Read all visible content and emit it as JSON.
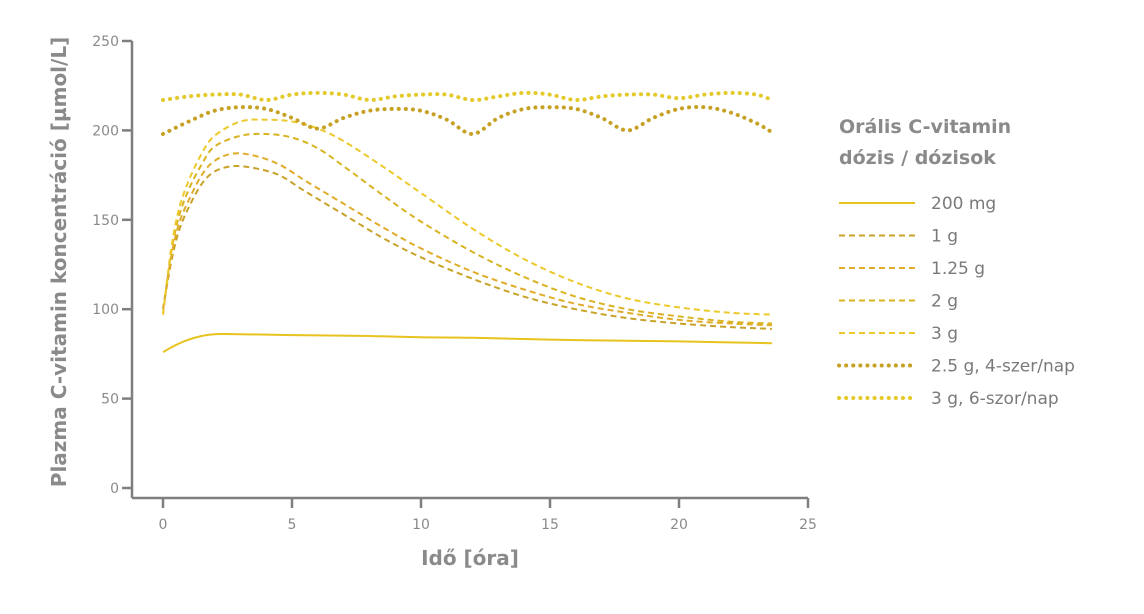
{
  "chart_data": {
    "type": "line",
    "title": "",
    "xlabel": "Idő [óra]",
    "ylabel": "Plazma C-vitamin koncentráció [µmol/L]",
    "xlim": [
      -1.2,
      25
    ],
    "ylim": [
      0,
      250
    ],
    "xticks": [
      0,
      5,
      10,
      15,
      20,
      25
    ],
    "yticks": [
      0,
      50,
      100,
      150,
      200,
      250
    ],
    "grid": false,
    "legend": {
      "title_lines": [
        "Orális C-vitamin",
        "dózis / dózisok"
      ],
      "placement": "right"
    },
    "series": [
      {
        "name": "200 mg",
        "style": "solid",
        "color": "#e8c21e",
        "points": [
          [
            0,
            76
          ],
          [
            0.5,
            80
          ],
          [
            1,
            83
          ],
          [
            1.5,
            85
          ],
          [
            2,
            86
          ],
          [
            3,
            86
          ],
          [
            5,
            85.5
          ],
          [
            8,
            85
          ],
          [
            10,
            84.3
          ],
          [
            12,
            84
          ],
          [
            15,
            83
          ],
          [
            18,
            82.3
          ],
          [
            20,
            82
          ],
          [
            23.6,
            81
          ]
        ]
      },
      {
        "name": "1 g",
        "style": "dashed",
        "color": "#c9a22a",
        "points": [
          [
            0,
            100
          ],
          [
            0.3,
            125
          ],
          [
            0.6,
            143
          ],
          [
            1,
            157
          ],
          [
            1.5,
            170
          ],
          [
            2,
            177
          ],
          [
            2.7,
            180
          ],
          [
            3.5,
            179
          ],
          [
            4.5,
            175
          ],
          [
            5.5,
            166
          ],
          [
            7,
            153
          ],
          [
            8.5,
            140
          ],
          [
            10,
            129
          ],
          [
            12,
            117
          ],
          [
            14,
            107
          ],
          [
            16,
            100
          ],
          [
            18,
            95
          ],
          [
            20,
            92
          ],
          [
            22,
            90
          ],
          [
            23.6,
            89
          ]
        ]
      },
      {
        "name": "1.25 g",
        "style": "dashed",
        "color": "#e0ac2a",
        "points": [
          [
            0,
            100
          ],
          [
            0.3,
            128
          ],
          [
            0.6,
            147
          ],
          [
            1,
            161
          ],
          [
            1.5,
            175
          ],
          [
            2,
            183
          ],
          [
            2.7,
            187
          ],
          [
            3.5,
            186
          ],
          [
            4.5,
            181
          ],
          [
            5.5,
            172
          ],
          [
            7,
            159
          ],
          [
            8.5,
            146
          ],
          [
            10,
            134
          ],
          [
            12,
            121
          ],
          [
            14,
            111
          ],
          [
            16,
            103
          ],
          [
            18,
            98
          ],
          [
            20,
            94
          ],
          [
            22,
            92
          ],
          [
            23.6,
            91
          ]
        ]
      },
      {
        "name": "2 g",
        "style": "dashed",
        "color": "#d9b422",
        "points": [
          [
            0,
            97
          ],
          [
            0.3,
            130
          ],
          [
            0.6,
            151
          ],
          [
            1,
            167
          ],
          [
            1.5,
            181
          ],
          [
            2,
            191
          ],
          [
            3,
            197
          ],
          [
            4,
            198
          ],
          [
            5,
            196
          ],
          [
            6,
            190
          ],
          [
            7,
            180
          ],
          [
            8.5,
            164
          ],
          [
            10,
            149
          ],
          [
            12,
            132
          ],
          [
            14,
            118
          ],
          [
            16,
            107
          ],
          [
            18,
            100
          ],
          [
            20,
            96
          ],
          [
            22,
            93
          ],
          [
            23.6,
            92
          ]
        ]
      },
      {
        "name": "3 g",
        "style": "dashed",
        "color": "#ecc92c",
        "points": [
          [
            0,
            97
          ],
          [
            0.3,
            132
          ],
          [
            0.6,
            155
          ],
          [
            1,
            172
          ],
          [
            1.5,
            187
          ],
          [
            2,
            197
          ],
          [
            3,
            205
          ],
          [
            4,
            206
          ],
          [
            5,
            205
          ],
          [
            6,
            201
          ],
          [
            7,
            194
          ],
          [
            8.5,
            180
          ],
          [
            10,
            165
          ],
          [
            12,
            145
          ],
          [
            14,
            128
          ],
          [
            16,
            115
          ],
          [
            18,
            106
          ],
          [
            20,
            101
          ],
          [
            22,
            98
          ],
          [
            23.6,
            97
          ]
        ]
      },
      {
        "name": "2.5 g, 4-szer/nap",
        "style": "dotted",
        "color": "#c6a123",
        "points": [
          [
            0,
            198
          ],
          [
            1,
            205
          ],
          [
            2,
            211
          ],
          [
            3,
            213
          ],
          [
            4,
            212
          ],
          [
            5,
            207
          ],
          [
            6,
            201
          ],
          [
            7,
            207
          ],
          [
            8,
            211
          ],
          [
            9,
            212
          ],
          [
            10,
            211
          ],
          [
            11,
            206
          ],
          [
            12,
            198
          ],
          [
            13,
            207
          ],
          [
            14,
            212
          ],
          [
            15,
            213
          ],
          [
            16,
            212
          ],
          [
            17,
            207
          ],
          [
            18,
            200
          ],
          [
            19,
            207
          ],
          [
            20,
            212
          ],
          [
            21,
            213
          ],
          [
            22,
            210
          ],
          [
            23,
            204
          ],
          [
            23.6,
            199
          ]
        ]
      },
      {
        "name": "3 g, 6-szor/nap",
        "style": "dotted",
        "color": "#e3c92a",
        "points": [
          [
            0,
            217
          ],
          [
            1,
            219
          ],
          [
            2,
            220
          ],
          [
            3,
            220
          ],
          [
            4,
            217
          ],
          [
            5,
            220
          ],
          [
            6,
            221
          ],
          [
            7,
            220
          ],
          [
            8,
            217
          ],
          [
            9,
            219
          ],
          [
            10,
            220
          ],
          [
            11,
            220
          ],
          [
            12,
            217
          ],
          [
            13,
            219
          ],
          [
            14,
            221
          ],
          [
            15,
            220
          ],
          [
            16,
            217
          ],
          [
            17,
            219
          ],
          [
            18,
            220
          ],
          [
            19,
            220
          ],
          [
            20,
            218
          ],
          [
            21,
            220
          ],
          [
            22,
            221
          ],
          [
            23,
            220
          ],
          [
            23.6,
            217
          ]
        ]
      }
    ]
  }
}
